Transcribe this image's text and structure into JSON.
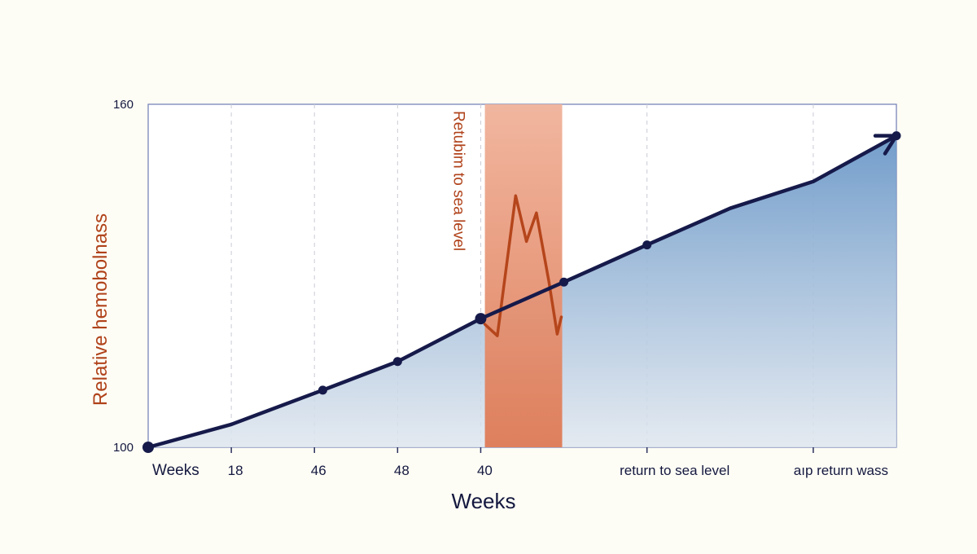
{
  "chart_data": {
    "type": "line",
    "title": "",
    "xlabel": "Weeks",
    "ylabel": "Relative hemobolnass",
    "ylim": [
      100,
      160
    ],
    "xlim": [
      0,
      9
    ],
    "y_ticks": [
      "100",
      "160"
    ],
    "x_ticks": [
      {
        "x": 1,
        "label": "18"
      },
      {
        "x": 2,
        "label": "46"
      },
      {
        "x": 3,
        "label": "48"
      },
      {
        "x": 4,
        "label": "40"
      },
      {
        "x": 6,
        "label": "return to sea level"
      },
      {
        "x": 8,
        "label": "aıp return wass"
      }
    ],
    "x_start_label": "Weeks",
    "grid": {
      "vertical": true,
      "horizontal": false
    },
    "series": [
      {
        "points": [
          {
            "x": 0,
            "y": 100
          },
          {
            "x": 1,
            "y": 104
          },
          {
            "x": 2.1,
            "y": 110
          },
          {
            "x": 3,
            "y": 115
          },
          {
            "x": 4,
            "y": 122.5
          },
          {
            "x": 5,
            "y": 128.9
          },
          {
            "x": 6,
            "y": 135.4
          },
          {
            "x": 7,
            "y": 141.8
          },
          {
            "x": 8,
            "y": 146.5
          },
          {
            "x": 9,
            "y": 154.5
          }
        ],
        "markers": [
          0,
          2,
          3,
          4,
          5,
          6,
          9
        ],
        "arrow_end": true,
        "color": "#161a4a",
        "area_fill": "#6b98c8"
      }
    ],
    "highlight_band": {
      "x0": 4.05,
      "x1": 4.98,
      "label": "Retubim to sea level",
      "color": "#e07a55",
      "label_color": "#b0421a",
      "spike": [
        {
          "x": 4.05,
          "y": 121.5
        },
        {
          "x": 4.2,
          "y": 119.5
        },
        {
          "x": 4.42,
          "y": 144
        },
        {
          "x": 4.55,
          "y": 136
        },
        {
          "x": 4.67,
          "y": 141
        },
        {
          "x": 4.82,
          "y": 129
        },
        {
          "x": 4.92,
          "y": 119.8
        },
        {
          "x": 4.97,
          "y": 122.8
        }
      ]
    }
  }
}
